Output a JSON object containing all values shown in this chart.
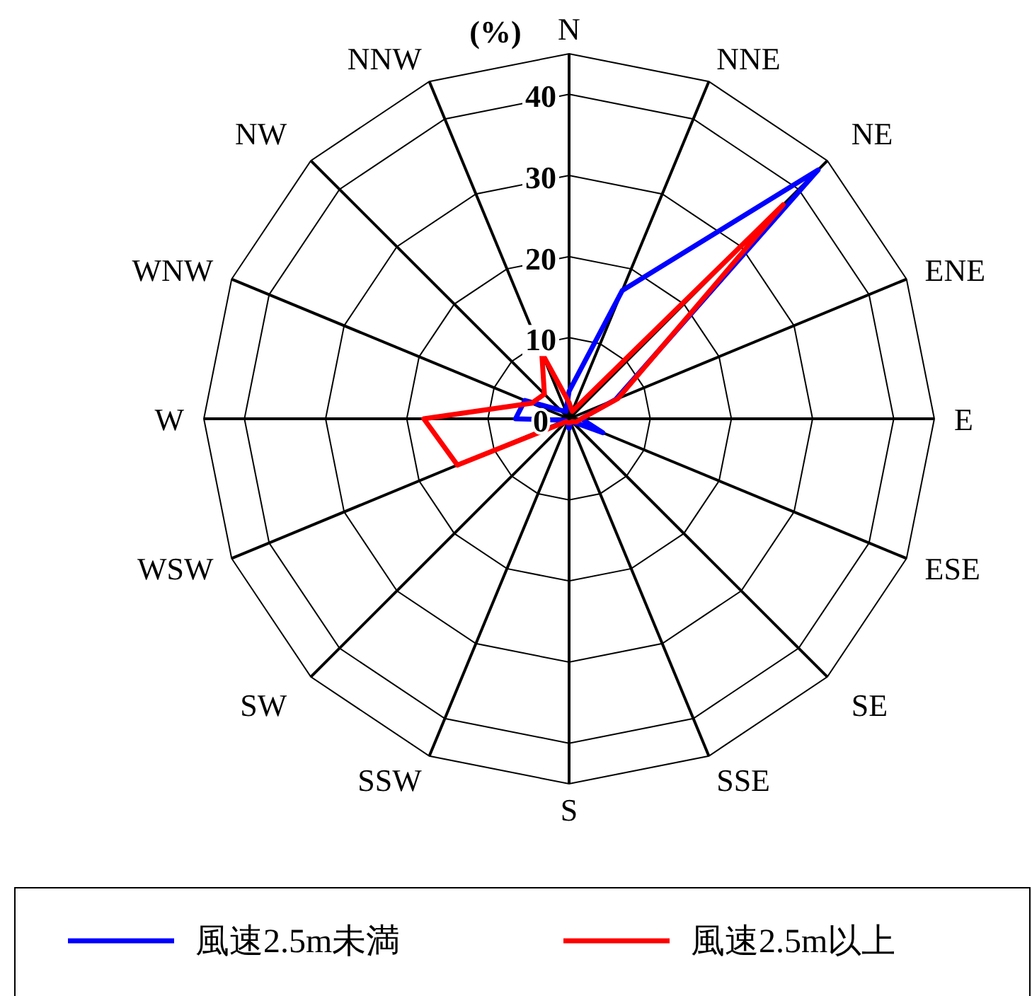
{
  "chart_data": {
    "type": "radar",
    "ylabel": "(%)",
    "categories": [
      "N",
      "NNE",
      "NE",
      "ENE",
      "E",
      "ESE",
      "SE",
      "SSE",
      "S",
      "SSW",
      "SW",
      "WSW",
      "W",
      "WNW",
      "NW",
      "NNW"
    ],
    "ylim": [
      0,
      45
    ],
    "yticks": [
      0,
      10,
      20,
      30,
      40
    ],
    "grid": true,
    "legend": "bottom",
    "line_style": "solid",
    "marker": "none",
    "series": [
      {
        "name": "風速2.5m未満",
        "color": "#0000ff",
        "values": [
          3.4,
          17.1,
          43.4,
          6.2,
          1.5,
          4.5,
          0.5,
          0.5,
          1.2,
          0.5,
          0.5,
          0.5,
          6.6,
          5.9,
          1.5,
          1
        ]
      },
      {
        "name": "風速2.5m以上",
        "color": "#ff0000",
        "values": [
          2,
          1,
          37.3,
          6.5,
          1.5,
          1,
          0.5,
          0.5,
          0.5,
          0.5,
          0.5,
          14.9,
          17.9,
          5,
          4.3,
          8.8
        ]
      }
    ]
  }
}
